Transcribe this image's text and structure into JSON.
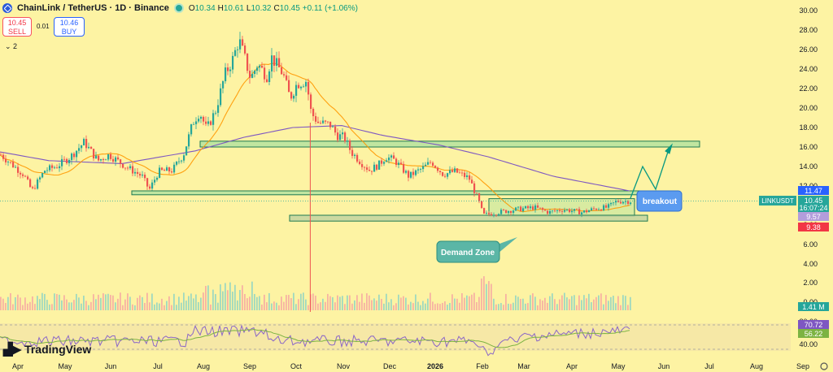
{
  "header": {
    "symbol_title": "ChainLink / TetherUS · 1D · Binance",
    "ohlc": [
      {
        "k": "O",
        "v": "10.34"
      },
      {
        "k": "H",
        "v": "10.61"
      },
      {
        "k": "L",
        "v": "10.32"
      },
      {
        "k": "C",
        "v": "10.45"
      },
      {
        "k": "",
        "v": "+0.11 (+1.06%)"
      }
    ]
  },
  "trade_panel": {
    "sell_price": "10.45",
    "sell_label": "SELL",
    "spread": "0.01",
    "buy_price": "10.46",
    "buy_label": "BUY",
    "indicators_toggle": "⌄ 2"
  },
  "branding": {
    "name": "TradingView"
  },
  "colors": {
    "background": "#fdf3a3",
    "up": "#26a69a",
    "down": "#ef5350",
    "ma_fast": "#ff9800",
    "ma_slow": "#7e57c2",
    "zone_fill": "#b9e3a0",
    "zone_stroke": "#1e7a52",
    "rsi": "#8a66c8",
    "rsi_ma": "#7cb342"
  },
  "chart_data": {
    "type": "candlestick",
    "price_axis": {
      "ticks": [
        "30.00",
        "28.00",
        "26.00",
        "24.00",
        "22.00",
        "20.00",
        "18.00",
        "16.00",
        "14.00",
        "12.00",
        "8.00",
        "6.00",
        "4.00",
        "2.00",
        "0.00"
      ],
      "range": [
        0,
        30
      ]
    },
    "time_axis": [
      "Apr",
      "May",
      "Jun",
      "Jul",
      "Aug",
      "Sep",
      "Oct",
      "Nov",
      "Dec",
      "2026",
      "Feb",
      "Mar",
      "Apr",
      "May",
      "Jun",
      "Jul",
      "Aug",
      "Sep"
    ],
    "price_tags": [
      {
        "text": "11.47",
        "price": 11.47,
        "color": "#2962ff"
      },
      {
        "text": "10.45",
        "price": 10.45,
        "color": "#26a69a"
      },
      {
        "text": "16:07:24",
        "price": 9.95,
        "color": "#26a69a"
      },
      {
        "text": "9.57",
        "price": 9.25,
        "color": "#b39ddb"
      },
      {
        "text": "9.38",
        "price": 8.5,
        "color": "#f23645"
      }
    ],
    "symbol_tag": "LINKUSDT",
    "volume_tag": "1.41 M",
    "rsi": {
      "ticks": [
        "80.00",
        "40.00"
      ],
      "tags": [
        "70.72",
        "56.22"
      ]
    },
    "zones": [
      {
        "name": "resistance-zone",
        "from": "Aug",
        "to": "Jun",
        "low": 16.0,
        "high": 16.6
      },
      {
        "name": "support-line-zone",
        "from": "Jun",
        "to": "May",
        "low": 11.1,
        "high": 11.5
      },
      {
        "name": "range-box",
        "from": "Feb",
        "to": "May",
        "low": 8.9,
        "high": 10.7
      },
      {
        "name": "demand-zone",
        "from": "Dec",
        "to": "May",
        "low": 8.4,
        "high": 9.0
      }
    ],
    "annotations": [
      {
        "text": "breakout"
      },
      {
        "text": "Demand Zone"
      }
    ]
  }
}
